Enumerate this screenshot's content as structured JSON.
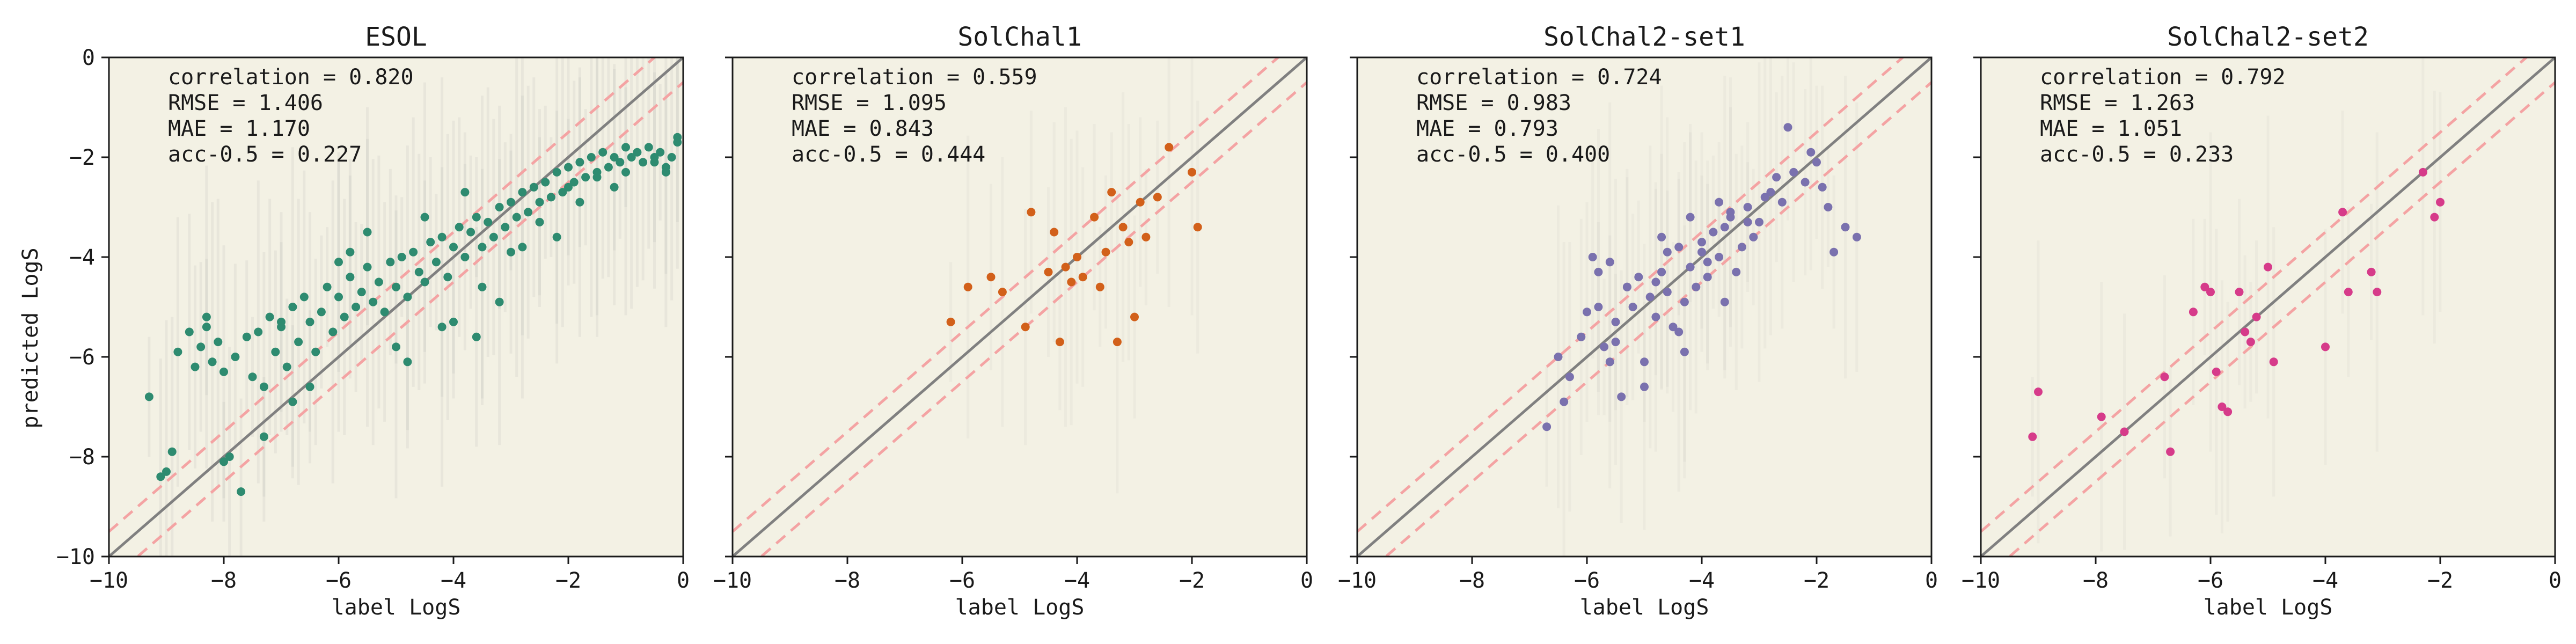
{
  "figure": {
    "shared_xlabel": "label LogS",
    "shared_ylabel": "predicted LogS"
  },
  "chart_data": [
    {
      "type": "scatter",
      "title": "ESOL",
      "xlabel": "label LogS",
      "ylabel": "predicted LogS",
      "xlim": [
        -10,
        0
      ],
      "ylim": [
        -10,
        0
      ],
      "xticks": [
        -10,
        -8,
        -6,
        -4,
        -2,
        0
      ],
      "yticks": [
        -10,
        -8,
        -6,
        -4,
        -2,
        0
      ],
      "color": "#2e8b70",
      "background": "#f3f1e4",
      "stats": [
        {
          "label": "correlation = 0.820"
        },
        {
          "label": "RMSE = 1.406"
        },
        {
          "label": "MAE = 1.170"
        },
        {
          "label": "acc-0.5 = 0.227"
        }
      ],
      "reference_lines": {
        "identity": true,
        "band": 0.5,
        "band_color": "#f4a3a3",
        "identity_color": "#808080"
      },
      "points_x": [
        -9.3,
        -9.0,
        -8.8,
        -8.6,
        -8.5,
        -8.4,
        -8.3,
        -8.2,
        -8.1,
        -8.0,
        -7.9,
        -7.8,
        -7.6,
        -7.5,
        -7.4,
        -7.3,
        -7.2,
        -7.1,
        -7.0,
        -6.9,
        -6.8,
        -6.7,
        -6.6,
        -6.5,
        -6.4,
        -6.3,
        -6.2,
        -6.1,
        -6.0,
        -5.9,
        -5.8,
        -5.7,
        -5.6,
        -5.5,
        -5.4,
        -5.3,
        -5.2,
        -5.1,
        -5.0,
        -4.9,
        -4.8,
        -4.7,
        -4.6,
        -4.5,
        -4.4,
        -4.3,
        -4.2,
        -4.1,
        -4.0,
        -3.9,
        -3.8,
        -3.7,
        -3.6,
        -3.5,
        -3.4,
        -3.3,
        -3.2,
        -3.1,
        -3.0,
        -2.9,
        -2.8,
        -2.7,
        -2.6,
        -2.5,
        -2.4,
        -2.3,
        -2.2,
        -2.1,
        -2.0,
        -1.9,
        -1.8,
        -1.7,
        -1.6,
        -1.5,
        -1.4,
        -1.3,
        -1.2,
        -1.1,
        -1.0,
        -0.9,
        -0.8,
        -0.7,
        -0.6,
        -0.5,
        -0.4,
        -0.3,
        -0.2,
        -0.1,
        -7.0,
        -7.7,
        -6.5,
        -8.0,
        -5.0,
        -4.5,
        -3.5,
        -3.0,
        -2.5,
        -2.0,
        -1.5,
        -1.0,
        -0.5,
        -6.0,
        -5.5,
        -4.0,
        -3.8,
        -2.8,
        -1.8,
        -1.2,
        -0.3,
        -0.1,
        -4.8,
        -4.2,
        -3.2,
        -2.2,
        -3.6,
        -5.8,
        -6.8,
        -7.3,
        -8.3,
        -8.9,
        -9.1
      ],
      "points_y": [
        -6.8,
        -8.3,
        -5.9,
        -5.5,
        -6.2,
        -5.8,
        -5.4,
        -6.1,
        -5.7,
        -6.3,
        -8.0,
        -6.0,
        -5.6,
        -6.4,
        -5.5,
        -6.6,
        -5.2,
        -5.9,
        -5.4,
        -6.2,
        -5.0,
        -5.7,
        -4.8,
        -5.3,
        -5.9,
        -5.1,
        -4.6,
        -5.5,
        -4.8,
        -5.2,
        -4.4,
        -5.0,
        -4.7,
        -4.2,
        -4.9,
        -4.5,
        -5.1,
        -4.1,
        -4.6,
        -4.0,
        -4.8,
        -3.9,
        -4.3,
        -4.5,
        -3.7,
        -4.1,
        -3.6,
        -4.4,
        -3.8,
        -3.4,
        -4.0,
        -3.5,
        -3.2,
        -3.8,
        -3.3,
        -3.6,
        -3.0,
        -3.4,
        -2.9,
        -3.2,
        -2.7,
        -3.1,
        -2.6,
        -2.9,
        -2.5,
        -2.8,
        -2.3,
        -2.7,
        -2.2,
        -2.5,
        -2.1,
        -2.4,
        -2.0,
        -2.3,
        -1.9,
        -2.2,
        -2.0,
        -2.1,
        -1.8,
        -2.0,
        -1.9,
        -2.1,
        -1.8,
        -2.0,
        -1.9,
        -2.2,
        -2.0,
        -1.7,
        -5.3,
        -8.7,
        -6.6,
        -8.1,
        -5.8,
        -3.2,
        -4.6,
        -3.9,
        -3.3,
        -2.6,
        -2.4,
        -2.3,
        -2.1,
        -4.1,
        -3.5,
        -5.3,
        -2.7,
        -3.8,
        -2.9,
        -2.6,
        -2.3,
        -1.6,
        -6.1,
        -5.4,
        -4.9,
        -3.6,
        -5.6,
        -3.9,
        -6.9,
        -7.6,
        -5.2,
        -7.9,
        -8.4
      ]
    },
    {
      "type": "scatter",
      "title": "SolChal1",
      "xlabel": "label LogS",
      "ylabel": "",
      "xlim": [
        -10,
        0
      ],
      "ylim": [
        -10,
        0
      ],
      "xticks": [
        -10,
        -8,
        -6,
        -4,
        -2,
        0
      ],
      "yticks": [
        -10,
        -8,
        -6,
        -4,
        -2,
        0
      ],
      "color": "#d2601a",
      "background": "#f3f1e4",
      "stats": [
        {
          "label": "correlation = 0.559"
        },
        {
          "label": "RMSE = 1.095"
        },
        {
          "label": "MAE = 0.843"
        },
        {
          "label": "acc-0.5 = 0.444"
        }
      ],
      "reference_lines": {
        "identity": true,
        "band": 0.5,
        "band_color": "#f4a3a3",
        "identity_color": "#808080"
      },
      "points_x": [
        -6.2,
        -5.9,
        -5.3,
        -4.9,
        -4.8,
        -4.5,
        -4.3,
        -4.2,
        -4.1,
        -4.0,
        -3.9,
        -3.7,
        -3.5,
        -3.4,
        -3.3,
        -3.2,
        -3.1,
        -3.0,
        -2.9,
        -2.8,
        -2.4,
        -2.0,
        -1.9,
        -4.4,
        -5.5,
        -2.6,
        -3.6
      ],
      "points_y": [
        -5.3,
        -4.6,
        -4.7,
        -5.4,
        -3.1,
        -4.3,
        -5.7,
        -4.2,
        -4.5,
        -4.0,
        -4.4,
        -3.2,
        -3.9,
        -2.7,
        -5.7,
        -3.4,
        -3.7,
        -5.2,
        -2.9,
        -3.6,
        -1.8,
        -2.3,
        -3.4,
        -3.5,
        -4.4,
        -2.8,
        -4.6
      ]
    },
    {
      "type": "scatter",
      "title": "SolChal2-set1",
      "xlabel": "label LogS",
      "ylabel": "",
      "xlim": [
        -10,
        0
      ],
      "ylim": [
        -10,
        0
      ],
      "xticks": [
        -10,
        -8,
        -6,
        -4,
        -2,
        0
      ],
      "yticks": [
        -10,
        -8,
        -6,
        -4,
        -2,
        0
      ],
      "color": "#7a71ae",
      "background": "#f3f1e4",
      "stats": [
        {
          "label": "correlation = 0.724"
        },
        {
          "label": "RMSE = 0.983"
        },
        {
          "label": "MAE = 0.793"
        },
        {
          "label": "acc-0.5 = 0.400"
        }
      ],
      "reference_lines": {
        "identity": true,
        "band": 0.5,
        "band_color": "#f4a3a3",
        "identity_color": "#808080"
      },
      "points_x": [
        -6.7,
        -6.5,
        -6.3,
        -6.1,
        -5.9,
        -5.8,
        -5.7,
        -5.6,
        -5.5,
        -5.4,
        -5.3,
        -5.2,
        -5.1,
        -5.0,
        -4.9,
        -4.8,
        -4.7,
        -4.6,
        -4.5,
        -4.4,
        -4.3,
        -4.2,
        -4.1,
        -4.0,
        -3.9,
        -3.8,
        -3.7,
        -3.6,
        -3.5,
        -3.4,
        -3.3,
        -3.2,
        -3.1,
        -3.0,
        -2.8,
        -2.6,
        -2.4,
        -2.2,
        -2.0,
        -1.8,
        -1.5,
        -1.3,
        -2.1,
        -1.9,
        -2.7,
        -3.6,
        -4.4,
        -5.0,
        -5.6,
        -6.0,
        -4.8,
        -4.0,
        -3.2,
        -2.9,
        -4.6,
        -5.3,
        -3.9,
        -4.2,
        -5.5,
        -6.4,
        -5.8,
        -4.3,
        -3.5,
        -2.5,
        -1.7,
        -3.7,
        -4.7
      ],
      "points_y": [
        -7.4,
        -6.0,
        -6.4,
        -5.6,
        -4.0,
        -5.0,
        -5.8,
        -4.1,
        -5.3,
        -6.8,
        -4.6,
        -5.0,
        -4.4,
        -6.1,
        -4.8,
        -5.2,
        -4.3,
        -4.7,
        -5.4,
        -3.8,
        -4.9,
        -4.2,
        -4.6,
        -3.7,
        -4.4,
        -3.5,
        -4.0,
        -3.4,
        -3.1,
        -4.3,
        -3.8,
        -3.0,
        -3.6,
        -3.3,
        -2.7,
        -2.9,
        -2.3,
        -2.5,
        -2.1,
        -3.0,
        -3.4,
        -3.6,
        -1.9,
        -2.6,
        -2.4,
        -4.9,
        -5.5,
        -6.6,
        -6.1,
        -5.1,
        -4.5,
        -3.9,
        -3.3,
        -2.8,
        -3.9,
        -4.6,
        -4.1,
        -3.2,
        -5.7,
        -6.9,
        -4.3,
        -5.9,
        -3.2,
        -1.4,
        -3.9,
        -2.9,
        -3.6
      ]
    },
    {
      "type": "scatter",
      "title": "SolChal2-set2",
      "xlabel": "label LogS",
      "ylabel": "",
      "xlim": [
        -10,
        0
      ],
      "ylim": [
        -10,
        0
      ],
      "xticks": [
        -10,
        -8,
        -6,
        -4,
        -2,
        0
      ],
      "yticks": [
        -10,
        -8,
        -6,
        -4,
        -2,
        0
      ],
      "color": "#d63b8a",
      "background": "#f3f1e4",
      "stats": [
        {
          "label": "correlation = 0.792"
        },
        {
          "label": "RMSE = 1.263"
        },
        {
          "label": "MAE = 1.051"
        },
        {
          "label": "acc-0.5 = 0.233"
        }
      ],
      "reference_lines": {
        "identity": true,
        "band": 0.5,
        "band_color": "#f4a3a3",
        "identity_color": "#808080"
      },
      "points_x": [
        -9.1,
        -9.0,
        -7.9,
        -7.5,
        -6.8,
        -6.7,
        -6.1,
        -6.0,
        -5.9,
        -5.8,
        -5.7,
        -5.5,
        -5.4,
        -5.3,
        -5.0,
        -4.9,
        -4.0,
        -3.7,
        -3.6,
        -3.2,
        -3.1,
        -2.3,
        -2.1,
        -2.0,
        -6.3,
        -5.2
      ],
      "points_y": [
        -7.6,
        -6.7,
        -7.2,
        -7.5,
        -6.4,
        -7.9,
        -4.6,
        -4.7,
        -6.3,
        -7.0,
        -7.1,
        -4.7,
        -5.5,
        -5.7,
        -4.2,
        -6.1,
        -5.8,
        -3.1,
        -4.7,
        -4.3,
        -4.7,
        -2.3,
        -3.2,
        -2.9,
        -5.1,
        -5.2
      ]
    }
  ]
}
